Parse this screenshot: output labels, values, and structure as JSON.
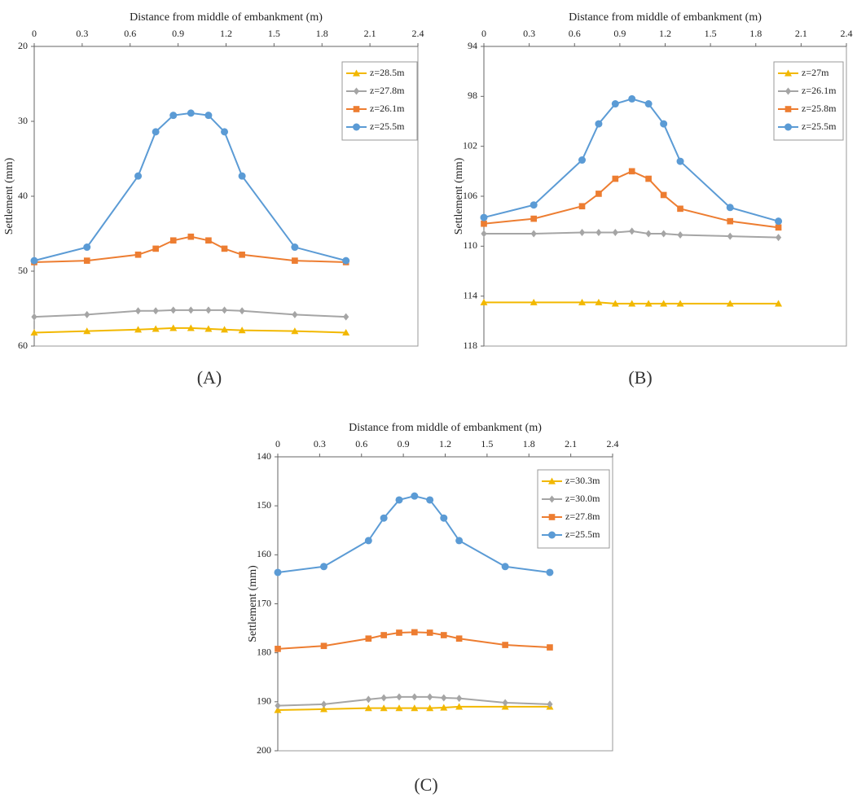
{
  "chart_data": [
    {
      "type": "line",
      "label": "(A)",
      "title": "Distance from middle of embankment (m)",
      "ylabel": "Settlement (mm)",
      "x": [
        0,
        0.33,
        0.65,
        0.76,
        0.87,
        0.98,
        1.09,
        1.19,
        1.3,
        1.63,
        1.95
      ],
      "xlim": [
        0,
        2.4
      ],
      "xticks": [
        0,
        0.3,
        0.6,
        0.9,
        1.2,
        1.5,
        1.8,
        2.1,
        2.4
      ],
      "ylim": [
        20,
        60
      ],
      "yticks": [
        20,
        30,
        40,
        50,
        60
      ],
      "y_inverted": true,
      "x_axis": "top",
      "legend": "upper right",
      "series": [
        {
          "name": "z=28.5m",
          "color": "#f2b800",
          "marker": "triangle",
          "values": [
            58.2,
            58.0,
            57.8,
            57.7,
            57.6,
            57.6,
            57.7,
            57.8,
            57.9,
            58.0,
            58.2
          ]
        },
        {
          "name": "z=27.8m",
          "color": "#a5a5a5",
          "marker": "diamond",
          "values": [
            56.1,
            55.8,
            55.3,
            55.3,
            55.2,
            55.2,
            55.2,
            55.2,
            55.3,
            55.8,
            56.1
          ]
        },
        {
          "name": "z=26.1m",
          "color": "#ed7d31",
          "marker": "square",
          "values": [
            48.8,
            48.6,
            47.8,
            47.0,
            45.9,
            45.4,
            45.9,
            47.0,
            47.8,
            48.6,
            48.8
          ]
        },
        {
          "name": "z=25.5m",
          "color": "#5b9bd5",
          "marker": "circle",
          "values": [
            48.6,
            46.8,
            37.3,
            31.4,
            29.2,
            28.9,
            29.2,
            31.4,
            37.3,
            46.8,
            48.6
          ]
        }
      ]
    },
    {
      "type": "line",
      "label": "(B)",
      "title": "Distance from middle of embankment (m)",
      "ylabel": "Settlement (mm)",
      "x": [
        0,
        0.33,
        0.65,
        0.76,
        0.87,
        0.98,
        1.09,
        1.19,
        1.3,
        1.63,
        1.95
      ],
      "xlim": [
        0,
        2.4
      ],
      "xticks": [
        0,
        0.3,
        0.6,
        0.9,
        1.2,
        1.5,
        1.8,
        2.1,
        2.4
      ],
      "ylim": [
        94,
        118
      ],
      "yticks": [
        94,
        98,
        102,
        106,
        110,
        114,
        118
      ],
      "y_inverted": true,
      "x_axis": "top",
      "legend": "upper right",
      "series": [
        {
          "name": "z=27m",
          "color": "#f2b800",
          "marker": "triangle",
          "values": [
            114.5,
            114.5,
            114.5,
            114.5,
            114.6,
            114.6,
            114.6,
            114.6,
            114.6,
            114.6,
            114.6
          ]
        },
        {
          "name": "z=26.1m",
          "color": "#a5a5a5",
          "marker": "diamond",
          "values": [
            109.0,
            109.0,
            108.9,
            108.9,
            108.9,
            108.8,
            109.0,
            109.0,
            109.1,
            109.2,
            109.3
          ]
        },
        {
          "name": "z=25.8m",
          "color": "#ed7d31",
          "marker": "square",
          "values": [
            108.2,
            107.8,
            106.8,
            105.8,
            104.6,
            104.0,
            104.6,
            105.9,
            107.0,
            108.0,
            108.5
          ]
        },
        {
          "name": "z=25.5m",
          "color": "#5b9bd5",
          "marker": "circle",
          "values": [
            107.7,
            106.7,
            103.1,
            100.2,
            98.6,
            98.2,
            98.6,
            100.2,
            103.2,
            106.9,
            108.0
          ]
        }
      ]
    },
    {
      "type": "line",
      "label": "(C)",
      "title": "Distance from middle of embankment (m)",
      "ylabel": "Settlement (mm)",
      "x": [
        0,
        0.33,
        0.65,
        0.76,
        0.87,
        0.98,
        1.09,
        1.19,
        1.3,
        1.63,
        1.95
      ],
      "xlim": [
        0,
        2.4
      ],
      "xticks": [
        0,
        0.3,
        0.6,
        0.9,
        1.2,
        1.5,
        1.8,
        2.1,
        2.4
      ],
      "ylim": [
        140,
        200
      ],
      "yticks": [
        140,
        150,
        160,
        170,
        180,
        190,
        200
      ],
      "y_inverted": true,
      "x_axis": "top",
      "legend": "upper right",
      "series": [
        {
          "name": "z=30.3m",
          "color": "#f2b800",
          "marker": "triangle",
          "values": [
            191.7,
            191.5,
            191.3,
            191.3,
            191.3,
            191.3,
            191.3,
            191.2,
            191.0,
            191.0,
            191.0
          ]
        },
        {
          "name": "z=30.0m",
          "color": "#a5a5a5",
          "marker": "diamond",
          "values": [
            190.8,
            190.5,
            189.5,
            189.2,
            189.0,
            189.0,
            189.0,
            189.2,
            189.3,
            190.2,
            190.5
          ]
        },
        {
          "name": "z=27.8m",
          "color": "#ed7d31",
          "marker": "square",
          "values": [
            179.2,
            178.6,
            177.1,
            176.4,
            175.9,
            175.8,
            175.9,
            176.4,
            177.1,
            178.4,
            178.9
          ]
        },
        {
          "name": "z=25.5m",
          "color": "#5b9bd5",
          "marker": "circle",
          "values": [
            163.6,
            162.4,
            157.1,
            152.5,
            148.8,
            148.0,
            148.8,
            152.5,
            157.1,
            162.4,
            163.6
          ]
        }
      ]
    }
  ]
}
